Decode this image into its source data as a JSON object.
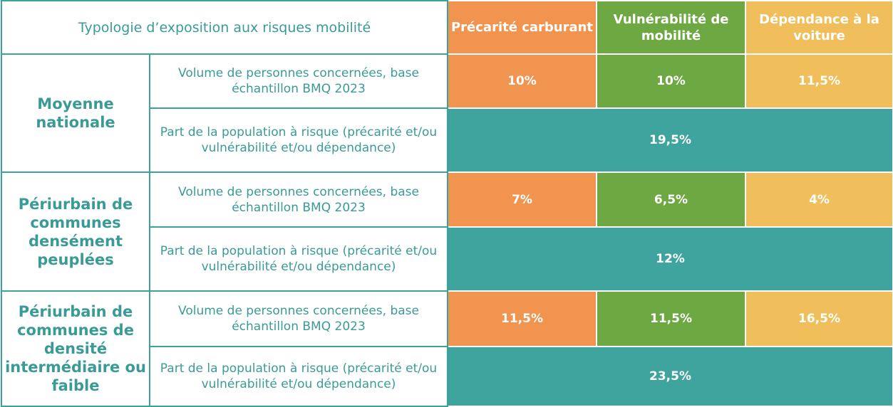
{
  "header": {
    "title": "Typologie d’exposition aux risques mobilité",
    "columns": [
      "Précarité carburant",
      "Vulnérabilité de mobilité",
      "Dépendance à la voiture"
    ]
  },
  "groups": [
    {
      "label": "Moyenne nationale",
      "volume_label": "Volume de personnes concernées, base échantillon BMQ 2023",
      "volume_values": [
        "10%",
        "10%",
        "11,5%"
      ],
      "part_label": "Part de la population à risque (précarité et/ou vulnérabilité et/ou dépendance)",
      "part_value": "19,5%"
    },
    {
      "label": "Périurbain de communes densément peuplées",
      "volume_label": "Volume de personnes concernées, base échantillon BMQ 2023",
      "volume_values": [
        "7%",
        "6,5%",
        "4%"
      ],
      "part_label": "Part de la population à risque (précarité et/ou vulnérabilité et/ou dépendance)",
      "part_value": "12%"
    },
    {
      "label": "Périurbain de communes de densité intermédiaire ou faible",
      "volume_label": "Volume de personnes concernées, base échantillon BMQ 2023",
      "volume_values": [
        "11,5%",
        "11,5%",
        "16,5%"
      ],
      "part_label": "Part de la population à risque (précarité et/ou vulnérabilité et/ou dépendance)",
      "part_value": "23,5%"
    }
  ],
  "colors": {
    "orange": "#f0944f",
    "green": "#6ea843",
    "yellow": "#f0be5a",
    "teal": "#40a49e",
    "text_teal": "#3a9b96"
  }
}
